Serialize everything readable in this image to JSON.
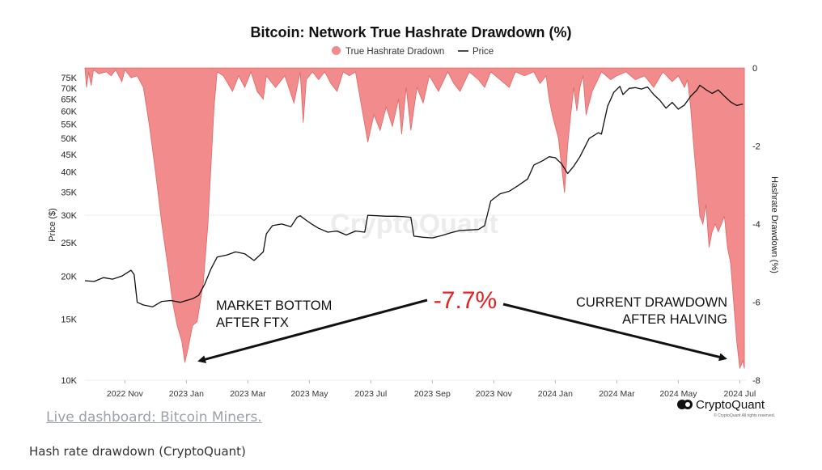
{
  "chart_data": {
    "type": "line+area",
    "title": "Bitcoin: Network True Hashrate Drawdown (%)",
    "legend": [
      "True Hashrate Dradown",
      "Price"
    ],
    "ylabel_left": "Price ($)",
    "ylabel_right": "Hashrate Drawdown (%)",
    "ylim_left": [
      10000,
      80000
    ],
    "ylim_right": [
      0,
      -8
    ],
    "left_ticks": [
      "75K",
      "70K",
      "65K",
      "60K",
      "55K",
      "50K",
      "45K",
      "40K",
      "35K",
      "30K",
      "25K",
      "20K",
      "15K",
      "10K"
    ],
    "left_tick_values": [
      75000,
      70000,
      65000,
      60000,
      55000,
      50000,
      45000,
      40000,
      35000,
      30000,
      25000,
      20000,
      15000,
      10000
    ],
    "right_ticks": [
      "0",
      "-2",
      "-4",
      "-6",
      "-8"
    ],
    "right_tick_values": [
      0,
      -2,
      -4,
      -6,
      -8
    ],
    "x_ticks": [
      "2022 Nov",
      "2023 Jan",
      "2023 Mar",
      "2023 May",
      "2023 Jul",
      "2023 Sep",
      "2023 Nov",
      "2024 Jan",
      "2024 Mar",
      "2024 May",
      "2024 Jul"
    ],
    "x_tick_positions": [
      1.3,
      3.3,
      5.3,
      7.3,
      9.3,
      11.3,
      13.3,
      15.3,
      17.3,
      19.3,
      21.3
    ],
    "x_range": [
      0,
      21.5
    ],
    "price": [
      [
        0.0,
        19400
      ],
      [
        0.3,
        19300
      ],
      [
        0.6,
        19800
      ],
      [
        0.9,
        19600
      ],
      [
        1.2,
        20000
      ],
      [
        1.5,
        20800
      ],
      [
        1.6,
        20200
      ],
      [
        1.7,
        16800
      ],
      [
        1.9,
        16500
      ],
      [
        2.2,
        16300
      ],
      [
        2.5,
        16900
      ],
      [
        2.8,
        17000
      ],
      [
        3.1,
        16800
      ],
      [
        3.3,
        17000
      ],
      [
        3.5,
        17200
      ],
      [
        3.7,
        17600
      ],
      [
        3.9,
        19000
      ],
      [
        4.1,
        21000
      ],
      [
        4.3,
        22700
      ],
      [
        4.6,
        23000
      ],
      [
        4.9,
        23500
      ],
      [
        5.2,
        23200
      ],
      [
        5.5,
        22200
      ],
      [
        5.8,
        23500
      ],
      [
        5.9,
        26500
      ],
      [
        6.1,
        28000
      ],
      [
        6.4,
        28300
      ],
      [
        6.7,
        27800
      ],
      [
        6.9,
        29600
      ],
      [
        7.0,
        29900
      ],
      [
        7.2,
        29000
      ],
      [
        7.4,
        28200
      ],
      [
        7.6,
        27500
      ],
      [
        7.9,
        26800
      ],
      [
        8.2,
        27000
      ],
      [
        8.5,
        26300
      ],
      [
        8.8,
        27000
      ],
      [
        9.1,
        26800
      ],
      [
        9.2,
        30000
      ],
      [
        9.5,
        29900
      ],
      [
        9.8,
        29800
      ],
      [
        10.1,
        29800
      ],
      [
        10.4,
        29700
      ],
      [
        10.6,
        29600
      ],
      [
        10.7,
        26100
      ],
      [
        11.0,
        25900
      ],
      [
        11.3,
        25800
      ],
      [
        11.6,
        26200
      ],
      [
        11.9,
        26700
      ],
      [
        12.2,
        27100
      ],
      [
        12.5,
        27200
      ],
      [
        12.8,
        27300
      ],
      [
        13.0,
        28000
      ],
      [
        13.2,
        33000
      ],
      [
        13.5,
        34600
      ],
      [
        13.8,
        35200
      ],
      [
        14.1,
        36600
      ],
      [
        14.4,
        38200
      ],
      [
        14.6,
        41900
      ],
      [
        14.9,
        43200
      ],
      [
        15.1,
        44300
      ],
      [
        15.3,
        44000
      ],
      [
        15.5,
        42300
      ],
      [
        15.7,
        39600
      ],
      [
        15.9,
        41600
      ],
      [
        16.1,
        44300
      ],
      [
        16.4,
        50000
      ],
      [
        16.7,
        52000
      ],
      [
        16.8,
        51500
      ],
      [
        17.0,
        62000
      ],
      [
        17.2,
        68000
      ],
      [
        17.4,
        70800
      ],
      [
        17.5,
        67000
      ],
      [
        17.7,
        69800
      ],
      [
        17.9,
        70200
      ],
      [
        18.1,
        69500
      ],
      [
        18.3,
        70500
      ],
      [
        18.5,
        67000
      ],
      [
        18.7,
        64500
      ],
      [
        18.9,
        61200
      ],
      [
        19.1,
        63600
      ],
      [
        19.3,
        60800
      ],
      [
        19.5,
        62500
      ],
      [
        19.7,
        66200
      ],
      [
        19.9,
        69000
      ],
      [
        20.0,
        71300
      ],
      [
        20.2,
        69200
      ],
      [
        20.4,
        67500
      ],
      [
        20.6,
        69100
      ],
      [
        20.8,
        66300
      ],
      [
        21.0,
        63800
      ],
      [
        21.2,
        62300
      ],
      [
        21.4,
        62900
      ]
    ],
    "drawdown": [
      [
        0.0,
        0
      ],
      [
        0.05,
        -0.5
      ],
      [
        0.12,
        -0.1
      ],
      [
        0.2,
        -0.45
      ],
      [
        0.28,
        -0.05
      ],
      [
        0.45,
        -0.15
      ],
      [
        0.7,
        -0.1
      ],
      [
        0.85,
        -0.2
      ],
      [
        1.0,
        -0.05
      ],
      [
        1.2,
        -0.35
      ],
      [
        1.3,
        -0.05
      ],
      [
        1.5,
        -0.25
      ],
      [
        1.7,
        -0.2
      ],
      [
        1.9,
        -0.5
      ],
      [
        2.1,
        -1.5
      ],
      [
        2.3,
        -2.7
      ],
      [
        2.5,
        -4.0
      ],
      [
        2.7,
        -5.1
      ],
      [
        2.85,
        -6.0
      ],
      [
        3.0,
        -6.6
      ],
      [
        3.15,
        -7.0
      ],
      [
        3.25,
        -7.55
      ],
      [
        3.35,
        -7.2
      ],
      [
        3.5,
        -6.6
      ],
      [
        3.65,
        -6.5
      ],
      [
        3.75,
        -6.0
      ],
      [
        3.85,
        -5.5
      ],
      [
        4.0,
        -4.0
      ],
      [
        4.1,
        -2.5
      ],
      [
        4.2,
        -1.0
      ],
      [
        4.3,
        -0.1
      ],
      [
        4.5,
        -0.2
      ],
      [
        4.8,
        -0.6
      ],
      [
        5.0,
        -0.2
      ],
      [
        5.2,
        -0.5
      ],
      [
        5.4,
        -0.1
      ],
      [
        5.6,
        -0.6
      ],
      [
        5.8,
        -0.8
      ],
      [
        5.9,
        -0.2
      ],
      [
        6.2,
        -0.5
      ],
      [
        6.5,
        -0.2
      ],
      [
        6.8,
        -0.9
      ],
      [
        7.0,
        -0.1
      ],
      [
        7.1,
        -1.4
      ],
      [
        7.2,
        -0.3
      ],
      [
        7.4,
        -0.1
      ],
      [
        7.6,
        -0.3
      ],
      [
        7.8,
        -0.1
      ],
      [
        8.0,
        -0.4
      ],
      [
        8.2,
        -0.6
      ],
      [
        8.4,
        -0.1
      ],
      [
        8.6,
        -0.2
      ],
      [
        8.8,
        -0.1
      ],
      [
        9.0,
        -1.0
      ],
      [
        9.2,
        -1.9
      ],
      [
        9.4,
        -1.2
      ],
      [
        9.6,
        -1.6
      ],
      [
        9.8,
        -1.0
      ],
      [
        10.0,
        -1.5
      ],
      [
        10.2,
        -0.8
      ],
      [
        10.3,
        -1.7
      ],
      [
        10.45,
        -0.5
      ],
      [
        10.6,
        -1.6
      ],
      [
        10.8,
        -0.5
      ],
      [
        11.0,
        -0.9
      ],
      [
        11.2,
        -0.2
      ],
      [
        11.5,
        -0.6
      ],
      [
        11.8,
        -0.1
      ],
      [
        12.0,
        -0.4
      ],
      [
        12.2,
        -0.6
      ],
      [
        12.5,
        -0.1
      ],
      [
        12.8,
        -0.3
      ],
      [
        13.0,
        -0.5
      ],
      [
        13.2,
        -0.1
      ],
      [
        13.5,
        -0.3
      ],
      [
        13.8,
        -0.5
      ],
      [
        14.0,
        -0.1
      ],
      [
        14.3,
        -0.2
      ],
      [
        14.6,
        -0.1
      ],
      [
        14.8,
        -0.4
      ],
      [
        15.0,
        -0.2
      ],
      [
        15.1,
        -0.8
      ],
      [
        15.2,
        -1.2
      ],
      [
        15.3,
        -1.5
      ],
      [
        15.4,
        -1.8
      ],
      [
        15.5,
        -2.5
      ],
      [
        15.6,
        -3.2
      ],
      [
        15.7,
        -2.0
      ],
      [
        15.8,
        -1.2
      ],
      [
        15.9,
        -0.5
      ],
      [
        16.0,
        -1.1
      ],
      [
        16.1,
        -0.5
      ],
      [
        16.2,
        -0.2
      ],
      [
        16.3,
        -1.2
      ],
      [
        16.5,
        -0.6
      ],
      [
        16.8,
        -0.1
      ],
      [
        17.1,
        -0.3
      ],
      [
        17.3,
        -0.2
      ],
      [
        17.6,
        -0.1
      ],
      [
        17.9,
        -0.3
      ],
      [
        18.2,
        -0.2
      ],
      [
        18.5,
        -0.5
      ],
      [
        18.8,
        -0.1
      ],
      [
        19.1,
        -0.35
      ],
      [
        19.3,
        -0.2
      ],
      [
        19.5,
        -0.5
      ],
      [
        19.6,
        -0.3
      ],
      [
        19.7,
        -1.0
      ],
      [
        19.8,
        -2.0
      ],
      [
        19.9,
        -2.9
      ],
      [
        20.0,
        -3.8
      ],
      [
        20.1,
        -4.0
      ],
      [
        20.2,
        -3.5
      ],
      [
        20.3,
        -4.6
      ],
      [
        20.4,
        -4.2
      ],
      [
        20.5,
        -4.0
      ],
      [
        20.6,
        -4.2
      ],
      [
        20.7,
        -4.0
      ],
      [
        20.8,
        -3.8
      ],
      [
        20.9,
        -4.6
      ],
      [
        21.0,
        -5.0
      ],
      [
        21.1,
        -6.0
      ],
      [
        21.2,
        -7.0
      ],
      [
        21.3,
        -7.7
      ],
      [
        21.4,
        -7.5
      ],
      [
        21.45,
        -7.7
      ]
    ]
  },
  "colors": {
    "drawdown_fill": "#f28b8b",
    "drawdown_stroke": "#e06666",
    "price_line": "#111111",
    "highlight": "#e52222",
    "arrow": "#111111"
  },
  "watermark": "CryptoQuant",
  "annotations": {
    "market_bottom_line1": "MARKET BOTTOM",
    "market_bottom_line2": "AFTER FTX",
    "current_line1": "CURRENT DRAWDOWN",
    "current_line2": "AFTER HALVING",
    "center_value": "-7.7%"
  },
  "brand": {
    "name": "CryptoQuant",
    "copyright": "© CryptoQuant All rights reserved."
  },
  "link_text": "Live dashboard: Bitcoin Miners.",
  "caption": "Hash rate drawdown (CryptoQuant)"
}
